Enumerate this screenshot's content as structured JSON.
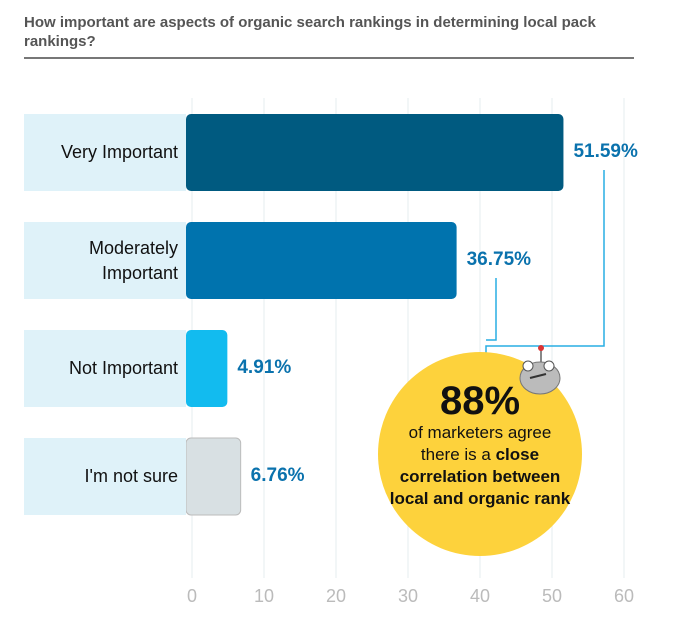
{
  "title": "How important are aspects of organic search rankings in determining local pack rankings?",
  "chart_data": {
    "type": "bar",
    "orientation": "horizontal",
    "title": "How important are aspects of organic search rankings in determining local pack rankings?",
    "categories": [
      "Very Important",
      "Moderately Important",
      "Not Important",
      "I'm not sure"
    ],
    "values": [
      51.59,
      36.75,
      4.91,
      6.76
    ],
    "value_labels": [
      "51.59%",
      "36.75%",
      "4.91%",
      "6.76%"
    ],
    "colors": [
      "#005a80",
      "#0073ae",
      "#12bbef",
      "#d8e0e3"
    ],
    "xlim": [
      0,
      60
    ],
    "xticks": [
      "0",
      "10",
      "20",
      "30",
      "40",
      "50",
      "60"
    ],
    "grid": true
  },
  "callout": {
    "big": "88%",
    "text_pre": "of marketers agree there is a ",
    "text_bold": "close correlation between local and organic rank"
  }
}
